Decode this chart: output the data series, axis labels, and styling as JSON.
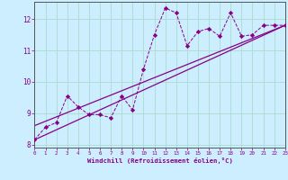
{
  "xlabel": "Windchill (Refroidissement éolien,°C)",
  "bg_color": "#cceeff",
  "grid_color": "#aaddcc",
  "line_color": "#880088",
  "xlim": [
    0,
    23
  ],
  "ylim": [
    7.9,
    12.55
  ],
  "xticks": [
    0,
    1,
    2,
    3,
    4,
    5,
    6,
    7,
    8,
    9,
    10,
    11,
    12,
    13,
    14,
    15,
    16,
    17,
    18,
    19,
    20,
    21,
    22,
    23
  ],
  "yticks": [
    8,
    9,
    10,
    11,
    12
  ],
  "data_x": [
    0,
    1,
    2,
    3,
    4,
    5,
    6,
    7,
    8,
    9,
    10,
    11,
    12,
    13,
    14,
    15,
    16,
    17,
    18,
    19,
    20,
    21,
    22,
    23
  ],
  "data_y": [
    8.15,
    8.55,
    8.7,
    9.55,
    9.2,
    8.95,
    8.95,
    8.85,
    9.55,
    9.1,
    10.4,
    11.5,
    12.35,
    12.2,
    11.15,
    11.6,
    11.7,
    11.45,
    12.2,
    11.45,
    11.5,
    11.8,
    11.8,
    11.8
  ],
  "trend1_x": [
    0,
    23
  ],
  "trend1_y": [
    8.15,
    11.8
  ],
  "trend2_x": [
    0,
    23
  ],
  "trend2_y": [
    8.6,
    11.8
  ]
}
